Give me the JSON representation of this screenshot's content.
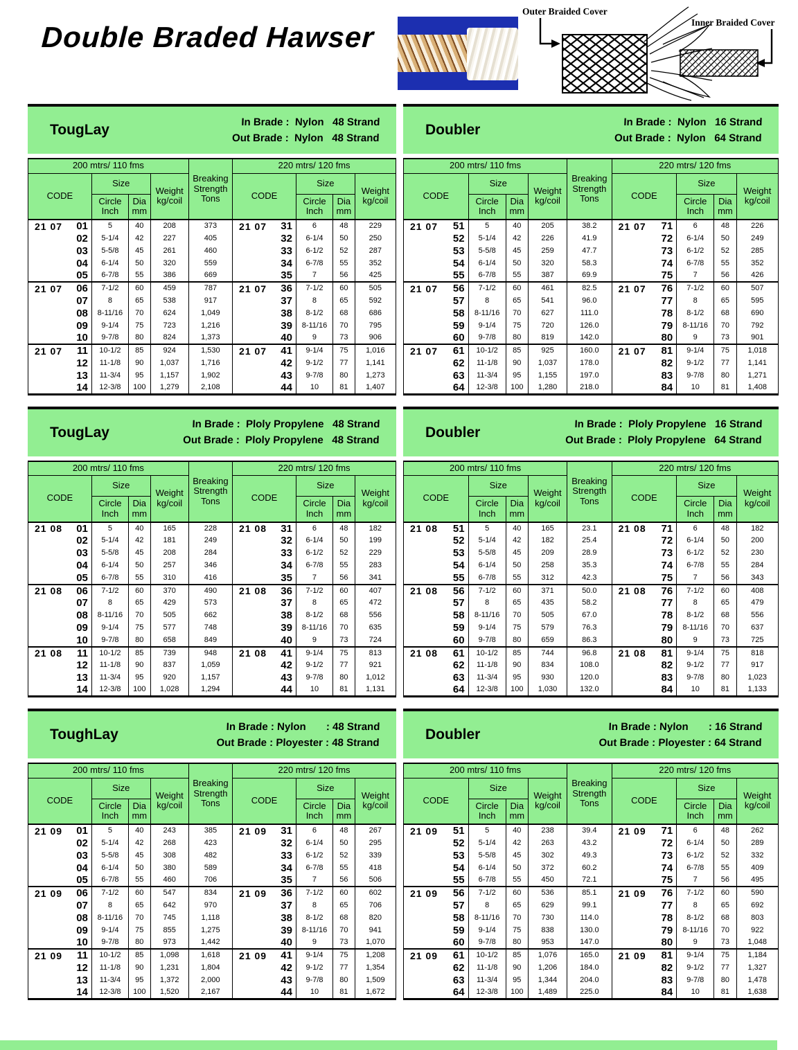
{
  "page": {
    "title": "Double Braded Hawser",
    "diagram": {
      "outer_label": "Outer Braided Cover",
      "inner_label": "Inner Braided Cover"
    }
  },
  "shared": {
    "len200": "200 mtrs/ 110 fms",
    "len220": "220 mtrs/ 120 fms",
    "code": "CODE",
    "size": "Size",
    "circle": "Circle\nInch",
    "dia": "Dia\nmm",
    "weight": "Weight\nkg/coil",
    "breaking": "Breaking\nStrength\nTons"
  },
  "tables": [
    {
      "id": "touglay-nylon",
      "name": "TougLay",
      "in_line": "In Brade :  Nylon   48 Strand",
      "out_line": "Out Brade :  Nylon   48 Strand",
      "rows": [
        [
          "21 07",
          "01",
          "5",
          "40",
          "208",
          "373",
          "21 07",
          "31",
          "6",
          "48",
          "229"
        ],
        [
          "",
          "02",
          "5-1/4",
          "42",
          "227",
          "405",
          "",
          "32",
          "6-1/4",
          "50",
          "250"
        ],
        [
          "",
          "03",
          "5-5/8",
          "45",
          "261",
          "460",
          "",
          "33",
          "6-1/2",
          "52",
          "287"
        ],
        [
          "",
          "04",
          "6-1/4",
          "50",
          "320",
          "559",
          "",
          "34",
          "6-7/8",
          "55",
          "352"
        ],
        [
          "",
          "05",
          "6-7/8",
          "55",
          "386",
          "669",
          "",
          "35",
          "7",
          "56",
          "425"
        ],
        [
          "21 07",
          "06",
          "7-1/2",
          "60",
          "459",
          "787",
          "21 07",
          "36",
          "7-1/2",
          "60",
          "505"
        ],
        [
          "",
          "07",
          "8",
          "65",
          "538",
          "917",
          "",
          "37",
          "8",
          "65",
          "592"
        ],
        [
          "",
          "08",
          "8-11/16",
          "70",
          "624",
          "1,049",
          "",
          "38",
          "8-1/2",
          "68",
          "686"
        ],
        [
          "",
          "09",
          "9-1/4",
          "75",
          "723",
          "1,216",
          "",
          "39",
          "8-11/16",
          "70",
          "795"
        ],
        [
          "",
          "10",
          "9-7/8",
          "80",
          "824",
          "1,373",
          "",
          "40",
          "9",
          "73",
          "906"
        ],
        [
          "21 07",
          "11",
          "10-1/2",
          "85",
          "924",
          "1,530",
          "21 07",
          "41",
          "9-1/4",
          "75",
          "1,016"
        ],
        [
          "",
          "12",
          "11-1/8",
          "90",
          "1,037",
          "1,716",
          "",
          "42",
          "9-1/2",
          "77",
          "1,141"
        ],
        [
          "",
          "13",
          "11-3/4",
          "95",
          "1,157",
          "1,902",
          "",
          "43",
          "9-7/8",
          "80",
          "1,273"
        ],
        [
          "",
          "14",
          "12-3/8",
          "100",
          "1,279",
          "2,108",
          "",
          "44",
          "10",
          "81",
          "1,407"
        ]
      ]
    },
    {
      "id": "doubler-nylon",
      "name": "Doubler",
      "in_line": "In Brade :  Nylon   16 Strand",
      "out_line": "Out Brade :  Nylon   64 Strand",
      "rows": [
        [
          "21 07",
          "51",
          "5",
          "40",
          "205",
          "38.2",
          "21 07",
          "71",
          "6",
          "48",
          "226"
        ],
        [
          "",
          "52",
          "5-1/4",
          "42",
          "226",
          "41.9",
          "",
          "72",
          "6-1/4",
          "50",
          "249"
        ],
        [
          "",
          "53",
          "5-5/8",
          "45",
          "259",
          "47.7",
          "",
          "73",
          "6-1/2",
          "52",
          "285"
        ],
        [
          "",
          "54",
          "6-1/4",
          "50",
          "320",
          "58.3",
          "",
          "74",
          "6-7/8",
          "55",
          "352"
        ],
        [
          "",
          "55",
          "6-7/8",
          "55",
          "387",
          "69.9",
          "",
          "75",
          "7",
          "56",
          "426"
        ],
        [
          "21 07",
          "56",
          "7-1/2",
          "60",
          "461",
          "82.5",
          "21 07",
          "76",
          "7-1/2",
          "60",
          "507"
        ],
        [
          "",
          "57",
          "8",
          "65",
          "541",
          "96.0",
          "",
          "77",
          "8",
          "65",
          "595"
        ],
        [
          "",
          "58",
          "8-11/16",
          "70",
          "627",
          "111.0",
          "",
          "78",
          "8-1/2",
          "68",
          "690"
        ],
        [
          "",
          "59",
          "9-1/4",
          "75",
          "720",
          "126.0",
          "",
          "79",
          "8-11/16",
          "70",
          "792"
        ],
        [
          "",
          "60",
          "9-7/8",
          "80",
          "819",
          "142.0",
          "",
          "80",
          "9",
          "73",
          "901"
        ],
        [
          "21 07",
          "61",
          "10-1/2",
          "85",
          "925",
          "160.0",
          "21 07",
          "81",
          "9-1/4",
          "75",
          "1,018"
        ],
        [
          "",
          "62",
          "11-1/8",
          "90",
          "1,037",
          "178.0",
          "",
          "82",
          "9-1/2",
          "77",
          "1,141"
        ],
        [
          "",
          "63",
          "11-3/4",
          "95",
          "1,155",
          "197.0",
          "",
          "83",
          "9-7/8",
          "80",
          "1,271"
        ],
        [
          "",
          "64",
          "12-3/8",
          "100",
          "1,280",
          "218.0",
          "",
          "84",
          "10",
          "81",
          "1,408"
        ]
      ]
    },
    {
      "id": "touglay-polypropylene",
      "name": "TougLay",
      "in_line": "In Brade :  Ploly Propylene   48 Strand",
      "out_line": "Out Brade :  Ploly Propylene   48 Strand",
      "rows": [
        [
          "21 08",
          "01",
          "5",
          "40",
          "165",
          "228",
          "21 08",
          "31",
          "6",
          "48",
          "182"
        ],
        [
          "",
          "02",
          "5-1/4",
          "42",
          "181",
          "249",
          "",
          "32",
          "6-1/4",
          "50",
          "199"
        ],
        [
          "",
          "03",
          "5-5/8",
          "45",
          "208",
          "284",
          "",
          "33",
          "6-1/2",
          "52",
          "229"
        ],
        [
          "",
          "04",
          "6-1/4",
          "50",
          "257",
          "346",
          "",
          "34",
          "6-7/8",
          "55",
          "283"
        ],
        [
          "",
          "05",
          "6-7/8",
          "55",
          "310",
          "416",
          "",
          "35",
          "7",
          "56",
          "341"
        ],
        [
          "21 08",
          "06",
          "7-1/2",
          "60",
          "370",
          "490",
          "21 08",
          "36",
          "7-1/2",
          "60",
          "407"
        ],
        [
          "",
          "07",
          "8",
          "65",
          "429",
          "573",
          "",
          "37",
          "8",
          "65",
          "472"
        ],
        [
          "",
          "08",
          "8-11/16",
          "70",
          "505",
          "662",
          "",
          "38",
          "8-1/2",
          "68",
          "556"
        ],
        [
          "",
          "09",
          "9-1/4",
          "75",
          "577",
          "748",
          "",
          "39",
          "8-11/16",
          "70",
          "635"
        ],
        [
          "",
          "10",
          "9-7/8",
          "80",
          "658",
          "849",
          "",
          "40",
          "9",
          "73",
          "724"
        ],
        [
          "21 08",
          "11",
          "10-1/2",
          "85",
          "739",
          "948",
          "21 08",
          "41",
          "9-1/4",
          "75",
          "813"
        ],
        [
          "",
          "12",
          "11-1/8",
          "90",
          "837",
          "1,059",
          "",
          "42",
          "9-1/2",
          "77",
          "921"
        ],
        [
          "",
          "13",
          "11-3/4",
          "95",
          "920",
          "1,157",
          "",
          "43",
          "9-7/8",
          "80",
          "1,012"
        ],
        [
          "",
          "14",
          "12-3/8",
          "100",
          "1,028",
          "1,294",
          "",
          "44",
          "10",
          "81",
          "1,131"
        ]
      ]
    },
    {
      "id": "doubler-polypropylene",
      "name": "Doubler",
      "in_line": "In Brade :  Ploly Propylene   16 Strand",
      "out_line": "Out Brade :  Ploly Propylene   64 Strand",
      "rows": [
        [
          "21 08",
          "51",
          "5",
          "40",
          "165",
          "23.1",
          "21 08",
          "71",
          "6",
          "48",
          "182"
        ],
        [
          "",
          "52",
          "5-1/4",
          "42",
          "182",
          "25.4",
          "",
          "72",
          "6-1/4",
          "50",
          "200"
        ],
        [
          "",
          "53",
          "5-5/8",
          "45",
          "209",
          "28.9",
          "",
          "73",
          "6-1/2",
          "52",
          "230"
        ],
        [
          "",
          "54",
          "6-1/4",
          "50",
          "258",
          "35.3",
          "",
          "74",
          "6-7/8",
          "55",
          "284"
        ],
        [
          "",
          "55",
          "6-7/8",
          "55",
          "312",
          "42.3",
          "",
          "75",
          "7",
          "56",
          "343"
        ],
        [
          "21 08",
          "56",
          "7-1/2",
          "60",
          "371",
          "50.0",
          "21 08",
          "76",
          "7-1/2",
          "60",
          "408"
        ],
        [
          "",
          "57",
          "8",
          "65",
          "435",
          "58.2",
          "",
          "77",
          "8",
          "65",
          "479"
        ],
        [
          "",
          "58",
          "8-11/16",
          "70",
          "505",
          "67.0",
          "",
          "78",
          "8-1/2",
          "68",
          "556"
        ],
        [
          "",
          "59",
          "9-1/4",
          "75",
          "579",
          "76.3",
          "",
          "79",
          "8-11/16",
          "70",
          "637"
        ],
        [
          "",
          "60",
          "9-7/8",
          "80",
          "659",
          "86.3",
          "",
          "80",
          "9",
          "73",
          "725"
        ],
        [
          "21 08",
          "61",
          "10-1/2",
          "85",
          "744",
          "96.8",
          "21 08",
          "81",
          "9-1/4",
          "75",
          "818"
        ],
        [
          "",
          "62",
          "11-1/8",
          "90",
          "834",
          "108.0",
          "",
          "82",
          "9-1/2",
          "77",
          "917"
        ],
        [
          "",
          "63",
          "11-3/4",
          "95",
          "930",
          "120.0",
          "",
          "83",
          "9-7/8",
          "80",
          "1,023"
        ],
        [
          "",
          "64",
          "12-3/8",
          "100",
          "1,030",
          "132.0",
          "",
          "84",
          "10",
          "81",
          "1,133"
        ]
      ]
    },
    {
      "id": "toughlay-nylon-polyester",
      "name": "ToughLay",
      "in_line": "In Brade : Nylon       : 48 Strand",
      "out_line": "Out Brade : Ployester : 48 Strand",
      "rows": [
        [
          "21 09",
          "01",
          "5",
          "40",
          "243",
          "385",
          "21 09",
          "31",
          "6",
          "48",
          "267"
        ],
        [
          "",
          "02",
          "5-1/4",
          "42",
          "268",
          "423",
          "",
          "32",
          "6-1/4",
          "50",
          "295"
        ],
        [
          "",
          "03",
          "5-5/8",
          "45",
          "308",
          "482",
          "",
          "33",
          "6-1/2",
          "52",
          "339"
        ],
        [
          "",
          "04",
          "6-1/4",
          "50",
          "380",
          "589",
          "",
          "34",
          "6-7/8",
          "55",
          "418"
        ],
        [
          "",
          "05",
          "6-7/8",
          "55",
          "460",
          "706",
          "",
          "35",
          "7",
          "56",
          "506"
        ],
        [
          "21 09",
          "06",
          "7-1/2",
          "60",
          "547",
          "834",
          "21 09",
          "36",
          "7-1/2",
          "60",
          "602"
        ],
        [
          "",
          "07",
          "8",
          "65",
          "642",
          "970",
          "",
          "37",
          "8",
          "65",
          "706"
        ],
        [
          "",
          "08",
          "8-11/16",
          "70",
          "745",
          "1,118",
          "",
          "38",
          "8-1/2",
          "68",
          "820"
        ],
        [
          "",
          "09",
          "9-1/4",
          "75",
          "855",
          "1,275",
          "",
          "39",
          "8-11/16",
          "70",
          "941"
        ],
        [
          "",
          "10",
          "9-7/8",
          "80",
          "973",
          "1,442",
          "",
          "40",
          "9",
          "73",
          "1,070"
        ],
        [
          "21 09",
          "11",
          "10-1/2",
          "85",
          "1,098",
          "1,618",
          "21 09",
          "41",
          "9-1/4",
          "75",
          "1,208"
        ],
        [
          "",
          "12",
          "11-1/8",
          "90",
          "1,231",
          "1,804",
          "",
          "42",
          "9-1/2",
          "77",
          "1,354"
        ],
        [
          "",
          "13",
          "11-3/4",
          "95",
          "1,372",
          "2,000",
          "",
          "43",
          "9-7/8",
          "80",
          "1,509"
        ],
        [
          "",
          "14",
          "12-3/8",
          "100",
          "1,520",
          "2,167",
          "",
          "44",
          "10",
          "81",
          "1,672"
        ]
      ]
    },
    {
      "id": "doubler-nylon-polyester",
      "name": "Doubler",
      "in_line": "In Brade : Nylon       : 16 Strand",
      "out_line": "Out Brade : Ployester : 64 Strand",
      "rows": [
        [
          "21 09",
          "51",
          "5",
          "40",
          "238",
          "39.4",
          "21 09",
          "71",
          "6",
          "48",
          "262"
        ],
        [
          "",
          "52",
          "5-1/4",
          "42",
          "263",
          "43.2",
          "",
          "72",
          "6-1/4",
          "50",
          "289"
        ],
        [
          "",
          "53",
          "5-5/8",
          "45",
          "302",
          "49.3",
          "",
          "73",
          "6-1/2",
          "52",
          "332"
        ],
        [
          "",
          "54",
          "6-1/4",
          "50",
          "372",
          "60.2",
          "",
          "74",
          "6-7/8",
          "55",
          "409"
        ],
        [
          "",
          "55",
          "6-7/8",
          "55",
          "450",
          "72.1",
          "",
          "75",
          "7",
          "56",
          "495"
        ],
        [
          "21 09",
          "56",
          "7-1/2",
          "60",
          "536",
          "85.1",
          "21 09",
          "76",
          "7-1/2",
          "60",
          "590"
        ],
        [
          "",
          "57",
          "8",
          "65",
          "629",
          "99.1",
          "",
          "77",
          "8",
          "65",
          "692"
        ],
        [
          "",
          "58",
          "8-11/16",
          "70",
          "730",
          "114.0",
          "",
          "78",
          "8-1/2",
          "68",
          "803"
        ],
        [
          "",
          "59",
          "9-1/4",
          "75",
          "838",
          "130.0",
          "",
          "79",
          "8-11/16",
          "70",
          "922"
        ],
        [
          "",
          "60",
          "9-7/8",
          "80",
          "953",
          "147.0",
          "",
          "80",
          "9",
          "73",
          "1,048"
        ],
        [
          "21 09",
          "61",
          "10-1/2",
          "85",
          "1,076",
          "165.0",
          "21 09",
          "81",
          "9-1/4",
          "75",
          "1,184"
        ],
        [
          "",
          "62",
          "11-1/8",
          "90",
          "1,206",
          "184.0",
          "",
          "82",
          "9-1/2",
          "77",
          "1,327"
        ],
        [
          "",
          "63",
          "11-3/4",
          "95",
          "1,344",
          "204.0",
          "",
          "83",
          "9-7/8",
          "80",
          "1,478"
        ],
        [
          "",
          "64",
          "12-3/8",
          "100",
          "1,489",
          "225.0",
          "",
          "84",
          "10",
          "81",
          "1,638"
        ]
      ]
    }
  ],
  "colors": {
    "table_green": "#92ee92",
    "code_cyan": "#a9f3f3",
    "photo_blue": "#1c2fb0"
  }
}
